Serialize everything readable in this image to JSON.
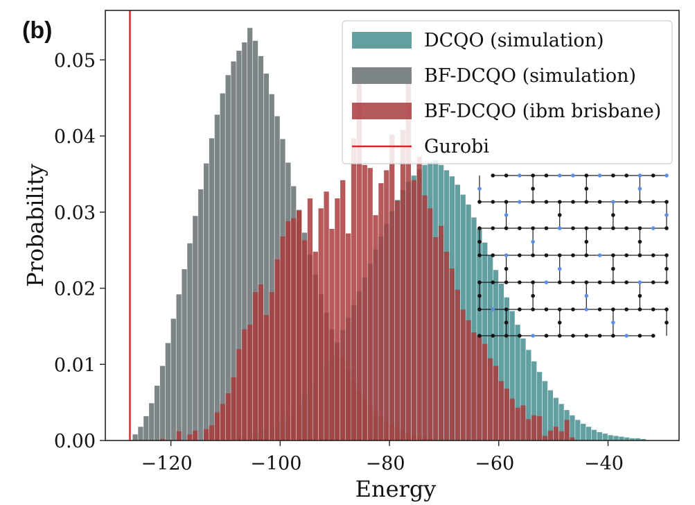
{
  "panel_label": "(b)",
  "colors": {
    "dcqo_sim": "#5b9a9c",
    "bfdcqo_sim": "#737b7d",
    "bfdcqo_ibm": "#a83c3d",
    "gurobi": "#e02020",
    "lattice_node": "#151515",
    "lattice_edge": "#1a1a1a",
    "lattice_blue": "#5d8ee6"
  },
  "chart_data": {
    "type": "bar",
    "title": "",
    "xlabel": "Energy",
    "ylabel": "Probability",
    "xlim": [
      -132,
      -27
    ],
    "ylim": [
      0,
      0.0565
    ],
    "xticks": [
      -120,
      -100,
      -80,
      -60,
      -40
    ],
    "xtick_labels": [
      "−120",
      "−100",
      "−80",
      "−60",
      "−40"
    ],
    "yticks": [
      0,
      0.01,
      0.02,
      0.03,
      0.04,
      0.05
    ],
    "ytick_labels": [
      "0.00",
      "0.01",
      "0.02",
      "0.03",
      "0.04",
      "0.05"
    ],
    "grid": false,
    "legend_position": "top-right",
    "bin_width": 1,
    "series": [
      {
        "name": "DCQO (simulation)",
        "key": "dcqo_sim",
        "x_start": -108,
        "values": [
          0.0005,
          0.0006,
          0.0008,
          0.001,
          0.0012,
          0.0015,
          0.0019,
          0.0023,
          0.0028,
          0.0034,
          0.0041,
          0.0048,
          0.0056,
          0.0066,
          0.0076,
          0.0088,
          0.01,
          0.0114,
          0.0129,
          0.0145,
          0.0161,
          0.0178,
          0.0196,
          0.0214,
          0.0232,
          0.0251,
          0.0268,
          0.0285,
          0.0301,
          0.0316,
          0.0329,
          0.034,
          0.0348,
          0.0356,
          0.0362,
          0.0366,
          0.0368,
          0.0362,
          0.0355,
          0.0347,
          0.0336,
          0.0323,
          0.031,
          0.0293,
          0.0278,
          0.026,
          0.0243,
          0.0224,
          0.0206,
          0.0188,
          0.017,
          0.0152,
          0.0134,
          0.0119,
          0.0104,
          0.009,
          0.0078,
          0.0066,
          0.0056,
          0.0048,
          0.004,
          0.0033,
          0.0027,
          0.0022,
          0.0018,
          0.0014,
          0.0011,
          0.0009,
          0.0007,
          0.0006,
          0.0005,
          0.0004,
          0.0003,
          0.0003,
          0.0002
        ]
      },
      {
        "name": "BF-DCQO (simulation)",
        "key": "bfdcqo_sim",
        "x_start": -127,
        "values": [
          0.0008,
          0.0018,
          0.0032,
          0.0049,
          0.0072,
          0.0098,
          0.0128,
          0.016,
          0.0192,
          0.0225,
          0.0259,
          0.0295,
          0.033,
          0.0364,
          0.0397,
          0.0428,
          0.0456,
          0.048,
          0.0498,
          0.0512,
          0.0523,
          0.0542,
          0.0525,
          0.0505,
          0.0482,
          0.0455,
          0.0426,
          0.0396,
          0.0365,
          0.0334,
          0.0303,
          0.0273,
          0.0244,
          0.0218,
          0.0192,
          0.0168,
          0.0146,
          0.0126,
          0.0108,
          0.0093,
          0.0078,
          0.0066,
          0.0055,
          0.0046,
          0.0038,
          0.0031,
          0.0025,
          0.002,
          0.0016,
          0.0012,
          0.0009,
          0.0007,
          0.0005,
          0.0004,
          0.0003
        ]
      },
      {
        "name": "BF-DCQO (ibm brisbane)",
        "key": "bfdcqo_ibm",
        "x_start": -122,
        "values": [
          0.0002,
          0.0,
          0.0,
          0.0012,
          0.0,
          0.0008,
          0.0013,
          0.0,
          0.0015,
          0.002,
          0.0037,
          0.0048,
          0.0062,
          0.0083,
          0.012,
          0.0146,
          0.0152,
          0.0195,
          0.0205,
          0.0165,
          0.0195,
          0.0238,
          0.0268,
          0.0288,
          0.0292,
          0.0302,
          0.0263,
          0.0318,
          0.0248,
          0.0305,
          0.0327,
          0.0278,
          0.0318,
          0.0342,
          0.0272,
          0.0397,
          0.0485,
          0.0362,
          0.0358,
          0.0296,
          0.0338,
          0.0355,
          0.0402,
          0.0315,
          0.0408,
          0.0472,
          0.0342,
          0.0373,
          0.0322,
          0.0305,
          0.0267,
          0.0282,
          0.0248,
          0.0226,
          0.0198,
          0.0172,
          0.0158,
          0.0142,
          0.0138,
          0.0127,
          0.0108,
          0.0098,
          0.0078,
          0.0068,
          0.0055,
          0.0043,
          0.0046,
          0.0028,
          0.0033,
          0.0032,
          0.0006,
          0.0013,
          0.0018,
          0.0012,
          0.0027,
          0.0004,
          0.0,
          0.0,
          0.0
        ]
      }
    ],
    "reference_lines": [
      {
        "name": "Gurobi",
        "key": "gurobi",
        "x": -127.5
      }
    ]
  }
}
